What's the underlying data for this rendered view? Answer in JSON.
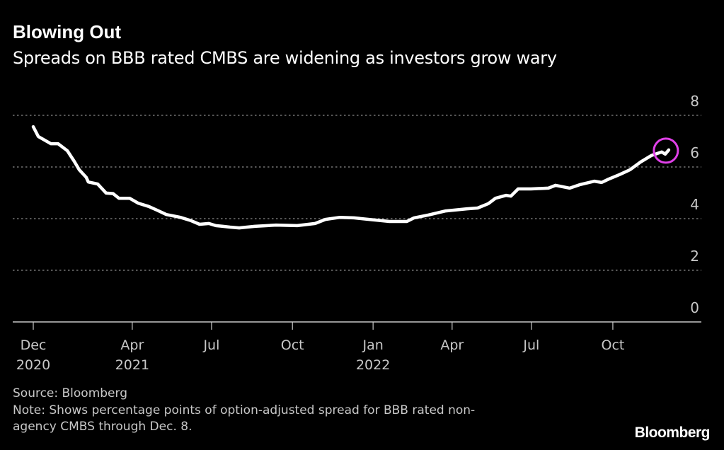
{
  "chart_data": {
    "type": "line",
    "title": "Blowing Out",
    "subtitle": "Spreads on BBB rated CMBS are widening as investors grow wary",
    "xlabel": "",
    "ylabel": "",
    "x_units": "months since Dec 2020 (approx.)",
    "xlim": [
      -0.77,
      25.1
    ],
    "ylim": [
      0,
      8
    ],
    "grid": true,
    "yticks": [
      {
        "value": 0,
        "label": "0"
      },
      {
        "value": 2,
        "label": "2"
      },
      {
        "value": 4,
        "label": "4"
      },
      {
        "value": 6,
        "label": "6"
      },
      {
        "value": 8,
        "label": "8"
      }
    ],
    "xticks": [
      {
        "value": 0,
        "label": "Dec",
        "year": "2020"
      },
      {
        "value": 3.72,
        "label": "Apr",
        "year": "2021"
      },
      {
        "value": 6.7,
        "label": "Jul",
        "year": ""
      },
      {
        "value": 9.74,
        "label": "Oct",
        "year": ""
      },
      {
        "value": 12.77,
        "label": "Jan",
        "year": "2022"
      },
      {
        "value": 15.74,
        "label": "Apr",
        "year": ""
      },
      {
        "value": 18.72,
        "label": "Jul",
        "year": ""
      },
      {
        "value": 21.78,
        "label": "Oct",
        "year": ""
      }
    ],
    "series": [
      {
        "name": "BBB CMBS option-adjusted spread",
        "color": "#ffffff",
        "x": [
          0,
          0.19,
          0.66,
          0.93,
          1.28,
          1.54,
          1.73,
          1.99,
          2.07,
          2.42,
          2.74,
          3.0,
          3.22,
          3.62,
          3.94,
          4.34,
          4.65,
          5.0,
          5.53,
          5.93,
          6.25,
          6.6,
          6.86,
          7.13,
          7.39,
          7.74,
          8.32,
          9.12,
          9.92,
          10.59,
          10.98,
          11.52,
          12.05,
          13.38,
          14.04,
          14.31,
          14.84,
          15.5,
          16.3,
          16.7,
          17.1,
          17.37,
          17.77,
          17.95,
          18.22,
          18.7,
          19.36,
          19.63,
          20.16,
          20.56,
          21.09,
          21.36,
          21.62,
          22.02,
          22.42,
          22.82,
          23.22,
          23.62,
          23.75,
          23.88
        ],
        "y": [
          7.56,
          7.18,
          6.9,
          6.9,
          6.63,
          6.22,
          5.89,
          5.6,
          5.42,
          5.34,
          4.99,
          4.97,
          4.79,
          4.79,
          4.6,
          4.47,
          4.33,
          4.16,
          4.05,
          3.92,
          3.78,
          3.81,
          3.73,
          3.7,
          3.67,
          3.64,
          3.7,
          3.75,
          3.73,
          3.81,
          3.97,
          4.05,
          4.03,
          3.89,
          3.89,
          4.03,
          4.14,
          4.3,
          4.38,
          4.41,
          4.58,
          4.79,
          4.9,
          4.87,
          5.15,
          5.15,
          5.18,
          5.29,
          5.18,
          5.32,
          5.45,
          5.4,
          5.53,
          5.7,
          5.89,
          6.19,
          6.44,
          6.58,
          6.5,
          6.66
        ]
      }
    ],
    "annotations": [
      {
        "type": "circle",
        "target": "latest value",
        "color": "#e040e8"
      }
    ]
  },
  "footer": {
    "source": "Source: Bloomberg",
    "note_line1": "Note: Shows percentage points of option-adjusted spread for BBB rated non-",
    "note_line2": "agency CMBS through Dec. 8.",
    "logo": "Bloomberg"
  }
}
